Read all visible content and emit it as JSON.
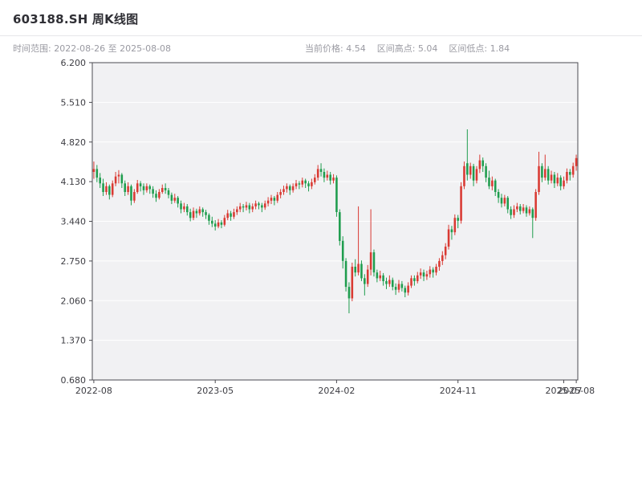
{
  "header": {
    "title": "603188.SH 周K线图",
    "time_range_label": "时间范围: 2022-08-26 至 2025-08-08",
    "stats": {
      "current_price": "当前价格: 4.54",
      "range_high": "区间高点: 5.04",
      "range_low": "区间低点: 1.84"
    }
  },
  "chart_data": {
    "type": "candlestick",
    "title": "603188.SH 周K线图",
    "interval": "weekly",
    "time_range": {
      "start": "2022-08-26",
      "end": "2025-08-08"
    },
    "current_price": 4.54,
    "range_high": 5.04,
    "range_low": 1.84,
    "ylim": [
      0.68,
      6.2
    ],
    "y_ticks": [
      0.68,
      1.37,
      2.06,
      2.75,
      3.44,
      4.13,
      4.82,
      5.51,
      6.2
    ],
    "x_ticks": [
      {
        "index": 0,
        "label": "2022-08"
      },
      {
        "index": 39,
        "label": "2023-05"
      },
      {
        "index": 78,
        "label": "2024-02"
      },
      {
        "index": 117,
        "label": "2024-11"
      },
      {
        "index": 151,
        "label": "2025-07"
      },
      {
        "index": 155,
        "label": "2025-08"
      }
    ],
    "grid": "horizontal",
    "legend": "none",
    "colors": {
      "up": "#d93a33",
      "down": "#1f9d4e",
      "plot_bg": "#f1f1f3",
      "grid": "#ffffff",
      "frame": "#4a4a50"
    },
    "candles": [
      [
        4.3,
        4.48,
        4.18,
        4.35
      ],
      [
        4.35,
        4.42,
        4.12,
        4.2
      ],
      [
        4.2,
        4.28,
        4.02,
        4.1
      ],
      [
        4.1,
        4.18,
        3.88,
        3.95
      ],
      [
        3.95,
        4.12,
        3.9,
        4.05
      ],
      [
        4.05,
        4.08,
        3.82,
        3.9
      ],
      [
        3.9,
        4.15,
        3.86,
        4.1
      ],
      [
        4.1,
        4.3,
        4.05,
        4.22
      ],
      [
        4.22,
        4.33,
        4.1,
        4.25
      ],
      [
        4.25,
        4.28,
        4.02,
        4.1
      ],
      [
        4.1,
        4.15,
        3.88,
        3.95
      ],
      [
        3.95,
        4.12,
        3.9,
        4.05
      ],
      [
        4.05,
        4.08,
        3.72,
        3.8
      ],
      [
        3.8,
        4.0,
        3.76,
        3.95
      ],
      [
        3.95,
        4.16,
        3.92,
        4.1
      ],
      [
        4.1,
        4.14,
        3.96,
        4.05
      ],
      [
        4.05,
        4.1,
        3.9,
        3.98
      ],
      [
        3.98,
        4.1,
        3.94,
        4.05
      ],
      [
        4.05,
        4.08,
        3.92,
        4.0
      ],
      [
        4.0,
        4.05,
        3.85,
        3.92
      ],
      [
        3.92,
        3.98,
        3.78,
        3.85
      ],
      [
        3.85,
        4.0,
        3.82,
        3.95
      ],
      [
        3.95,
        4.08,
        3.92,
        4.02
      ],
      [
        4.02,
        4.1,
        3.92,
        3.98
      ],
      [
        3.98,
        4.02,
        3.84,
        3.9
      ],
      [
        3.9,
        3.94,
        3.74,
        3.8
      ],
      [
        3.8,
        3.92,
        3.76,
        3.85
      ],
      [
        3.85,
        3.88,
        3.68,
        3.75
      ],
      [
        3.75,
        3.8,
        3.58,
        3.65
      ],
      [
        3.65,
        3.76,
        3.6,
        3.7
      ],
      [
        3.7,
        3.74,
        3.54,
        3.6
      ],
      [
        3.6,
        3.66,
        3.44,
        3.5
      ],
      [
        3.5,
        3.68,
        3.46,
        3.62
      ],
      [
        3.62,
        3.66,
        3.5,
        3.58
      ],
      [
        3.58,
        3.7,
        3.54,
        3.65
      ],
      [
        3.65,
        3.68,
        3.52,
        3.6
      ],
      [
        3.6,
        3.64,
        3.48,
        3.55
      ],
      [
        3.55,
        3.58,
        3.38,
        3.45
      ],
      [
        3.45,
        3.52,
        3.34,
        3.4
      ],
      [
        3.4,
        3.46,
        3.28,
        3.35
      ],
      [
        3.35,
        3.48,
        3.32,
        3.42
      ],
      [
        3.42,
        3.46,
        3.32,
        3.38
      ],
      [
        3.38,
        3.55,
        3.35,
        3.5
      ],
      [
        3.5,
        3.64,
        3.46,
        3.58
      ],
      [
        3.58,
        3.62,
        3.45,
        3.52
      ],
      [
        3.52,
        3.66,
        3.48,
        3.6
      ],
      [
        3.6,
        3.7,
        3.55,
        3.65
      ],
      [
        3.65,
        3.76,
        3.6,
        3.7
      ],
      [
        3.7,
        3.74,
        3.6,
        3.68
      ],
      [
        3.68,
        3.78,
        3.63,
        3.72
      ],
      [
        3.72,
        3.76,
        3.58,
        3.65
      ],
      [
        3.65,
        3.75,
        3.6,
        3.7
      ],
      [
        3.7,
        3.8,
        3.65,
        3.75
      ],
      [
        3.75,
        3.78,
        3.65,
        3.72
      ],
      [
        3.72,
        3.76,
        3.6,
        3.68
      ],
      [
        3.68,
        3.8,
        3.64,
        3.75
      ],
      [
        3.75,
        3.86,
        3.7,
        3.8
      ],
      [
        3.8,
        3.9,
        3.74,
        3.85
      ],
      [
        3.85,
        3.88,
        3.72,
        3.8
      ],
      [
        3.8,
        3.95,
        3.76,
        3.9
      ],
      [
        3.9,
        4.0,
        3.84,
        3.95
      ],
      [
        3.95,
        4.06,
        3.9,
        4.0
      ],
      [
        4.0,
        4.1,
        3.94,
        4.05
      ],
      [
        4.05,
        4.08,
        3.9,
        3.98
      ],
      [
        3.98,
        4.1,
        3.94,
        4.05
      ],
      [
        4.05,
        4.16,
        4.0,
        4.1
      ],
      [
        4.1,
        4.14,
        4.0,
        4.08
      ],
      [
        4.08,
        4.2,
        4.03,
        4.15
      ],
      [
        4.15,
        4.18,
        4.02,
        4.1
      ],
      [
        4.1,
        4.14,
        3.96,
        4.05
      ],
      [
        4.05,
        4.18,
        4.0,
        4.12
      ],
      [
        4.12,
        4.26,
        4.08,
        4.2
      ],
      [
        4.2,
        4.42,
        4.15,
        4.35
      ],
      [
        4.35,
        4.45,
        4.22,
        4.3
      ],
      [
        4.3,
        4.36,
        4.12,
        4.2
      ],
      [
        4.2,
        4.32,
        4.15,
        4.25
      ],
      [
        4.25,
        4.3,
        4.08,
        4.15
      ],
      [
        4.15,
        4.26,
        4.1,
        4.2
      ],
      [
        4.2,
        4.24,
        3.52,
        3.6
      ],
      [
        3.6,
        3.65,
        3.02,
        3.1
      ],
      [
        3.1,
        3.18,
        2.62,
        2.75
      ],
      [
        2.75,
        2.8,
        2.22,
        2.3
      ],
      [
        2.3,
        2.38,
        1.84,
        2.1
      ],
      [
        2.1,
        2.72,
        2.05,
        2.65
      ],
      [
        2.65,
        2.78,
        2.48,
        2.55
      ],
      [
        2.55,
        3.7,
        2.5,
        2.7
      ],
      [
        2.7,
        2.76,
        2.4,
        2.45
      ],
      [
        2.45,
        2.52,
        2.15,
        2.35
      ],
      [
        2.35,
        2.68,
        2.3,
        2.6
      ],
      [
        2.6,
        3.65,
        2.5,
        2.9
      ],
      [
        2.9,
        2.95,
        2.48,
        2.55
      ],
      [
        2.55,
        2.6,
        2.38,
        2.45
      ],
      [
        2.45,
        2.58,
        2.4,
        2.5
      ],
      [
        2.5,
        2.54,
        2.32,
        2.4
      ],
      [
        2.4,
        2.46,
        2.26,
        2.35
      ],
      [
        2.35,
        2.5,
        2.3,
        2.42
      ],
      [
        2.42,
        2.46,
        2.24,
        2.3
      ],
      [
        2.3,
        2.36,
        2.16,
        2.25
      ],
      [
        2.25,
        2.42,
        2.2,
        2.35
      ],
      [
        2.35,
        2.4,
        2.22,
        2.28
      ],
      [
        2.28,
        2.32,
        2.12,
        2.2
      ],
      [
        2.2,
        2.38,
        2.15,
        2.32
      ],
      [
        2.32,
        2.5,
        2.28,
        2.45
      ],
      [
        2.45,
        2.5,
        2.32,
        2.4
      ],
      [
        2.4,
        2.56,
        2.36,
        2.5
      ],
      [
        2.5,
        2.62,
        2.44,
        2.55
      ],
      [
        2.55,
        2.6,
        2.4,
        2.48
      ],
      [
        2.48,
        2.58,
        2.42,
        2.52
      ],
      [
        2.52,
        2.66,
        2.46,
        2.6
      ],
      [
        2.6,
        2.64,
        2.46,
        2.55
      ],
      [
        2.55,
        2.7,
        2.5,
        2.65
      ],
      [
        2.65,
        2.8,
        2.58,
        2.75
      ],
      [
        2.75,
        2.92,
        2.68,
        2.85
      ],
      [
        2.85,
        3.06,
        2.78,
        3.0
      ],
      [
        3.0,
        3.38,
        2.95,
        3.3
      ],
      [
        3.3,
        3.36,
        3.12,
        3.25
      ],
      [
        3.25,
        3.56,
        3.2,
        3.5
      ],
      [
        3.5,
        3.55,
        3.32,
        3.45
      ],
      [
        3.45,
        4.12,
        3.4,
        4.05
      ],
      [
        4.05,
        4.48,
        4.0,
        4.4
      ],
      [
        4.45,
        5.04,
        4.15,
        4.25
      ],
      [
        4.25,
        4.46,
        4.18,
        4.4
      ],
      [
        4.4,
        4.44,
        4.05,
        4.15
      ],
      [
        4.15,
        4.4,
        4.1,
        4.35
      ],
      [
        4.35,
        4.6,
        4.28,
        4.5
      ],
      [
        4.5,
        4.55,
        4.3,
        4.4
      ],
      [
        4.4,
        4.45,
        4.12,
        4.2
      ],
      [
        4.2,
        4.32,
        4.0,
        4.05
      ],
      [
        4.05,
        4.22,
        3.98,
        4.15
      ],
      [
        4.15,
        4.18,
        3.88,
        3.95
      ],
      [
        3.95,
        4.0,
        3.76,
        3.85
      ],
      [
        3.85,
        3.92,
        3.68,
        3.75
      ],
      [
        3.75,
        3.9,
        3.7,
        3.85
      ],
      [
        3.85,
        3.88,
        3.58,
        3.65
      ],
      [
        3.65,
        3.7,
        3.48,
        3.55
      ],
      [
        3.55,
        3.72,
        3.5,
        3.65
      ],
      [
        3.65,
        3.76,
        3.6,
        3.7
      ],
      [
        3.7,
        3.74,
        3.56,
        3.62
      ],
      [
        3.62,
        3.74,
        3.58,
        3.68
      ],
      [
        3.68,
        3.72,
        3.52,
        3.58
      ],
      [
        3.58,
        3.7,
        3.54,
        3.65
      ],
      [
        3.65,
        3.68,
        3.15,
        3.5
      ],
      [
        3.5,
        4.0,
        3.45,
        3.95
      ],
      [
        3.95,
        4.65,
        3.9,
        4.4
      ],
      [
        4.4,
        4.45,
        4.12,
        4.2
      ],
      [
        4.2,
        4.6,
        4.15,
        4.35
      ],
      [
        4.35,
        4.4,
        4.08,
        4.15
      ],
      [
        4.15,
        4.32,
        4.1,
        4.25
      ],
      [
        4.25,
        4.3,
        4.02,
        4.1
      ],
      [
        4.1,
        4.28,
        4.05,
        4.2
      ],
      [
        4.2,
        4.24,
        3.98,
        4.05
      ],
      [
        4.05,
        4.22,
        4.0,
        4.15
      ],
      [
        4.15,
        4.36,
        4.1,
        4.3
      ],
      [
        4.3,
        4.35,
        4.15,
        4.25
      ],
      [
        4.25,
        4.46,
        4.2,
        4.4
      ],
      [
        4.4,
        4.6,
        4.32,
        4.54
      ]
    ]
  }
}
